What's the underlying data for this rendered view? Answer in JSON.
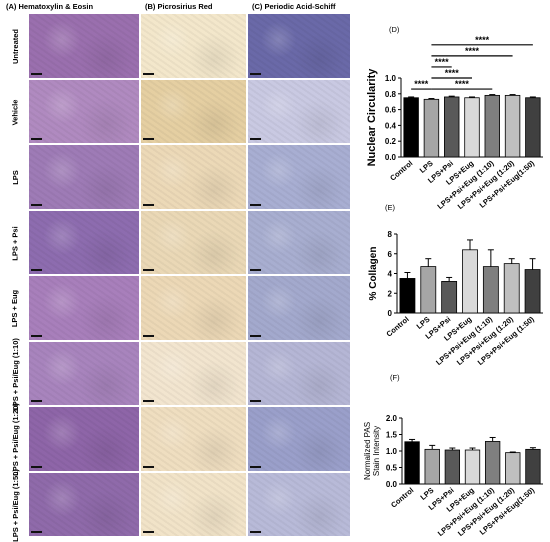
{
  "figure": {
    "column_headers": [
      "(A) Hematoxylin & Eosin",
      "(B) Picrosirius Red",
      "(C) Periodic Acid-Schiff"
    ],
    "row_labels": [
      "Untreated",
      "Vehicle",
      "LPS",
      "LPS + Psi",
      "LPS + Eug",
      "LPS + Psi/Eug (1:10)",
      "LPS + Psi/Eug (1:20)",
      "LPS + Psi/Eug (1:50)"
    ],
    "tile_colors": {
      "he": [
        "#9a6fae",
        "#b08ac0",
        "#9e7bb6",
        "#8d6caf",
        "#a87fbb",
        "#a884bd",
        "#8e65a8",
        "#8f6aaa"
      ],
      "psr": [
        "#f3e7cb",
        "#e5cfa2",
        "#ecd9b7",
        "#ead8b6",
        "#ecd8b6",
        "#f2e5cf",
        "#efdec0",
        "#f1e3c8"
      ],
      "pas": [
        "#6a69a8",
        "#c9c9e2",
        "#a8aed2",
        "#a8aed0",
        "#a3a9cd",
        "#b5b6d5",
        "#9a9fca",
        "#b8bad8"
      ]
    }
  },
  "chart_data": [
    {
      "type": "bar",
      "panel": "(D)",
      "ylabel": "Nuclear Circularity",
      "ylim": [
        0,
        1.0
      ],
      "yticks": [
        "0.0",
        "0.2",
        "0.4",
        "0.6",
        "0.8",
        "1.0"
      ],
      "categories": [
        "Control",
        "LPS",
        "LPS+Psi",
        "LPS+Eug",
        "LPS+Psi+Eug (1:10)",
        "LPS+Psi+Eug (1:20)",
        "LPS+Psi+Eug(1:50)"
      ],
      "values": [
        0.75,
        0.73,
        0.76,
        0.75,
        0.78,
        0.78,
        0.75
      ],
      "errors": [
        0.01,
        0.01,
        0.01,
        0.01,
        0.01,
        0.01,
        0.01
      ],
      "bar_colors": [
        "#000000",
        "#a6a6a6",
        "#595959",
        "#d9d9d9",
        "#7f7f7f",
        "#bfbfbf",
        "#404040"
      ],
      "significance": [
        {
          "from": 0,
          "to": 1,
          "label": "****",
          "y": 0.86
        },
        {
          "from": 1,
          "to": 4,
          "label": "****",
          "y": 0.86
        },
        {
          "from": 1,
          "to": 3,
          "label": "****",
          "y": 1.0
        },
        {
          "from": 1,
          "to": 2,
          "label": "****",
          "y": 1.14
        },
        {
          "from": 1,
          "to": 5,
          "label": "****",
          "y": 1.28
        },
        {
          "from": 1,
          "to": 6,
          "label": "****",
          "y": 1.42
        }
      ]
    },
    {
      "type": "bar",
      "panel": "(E)",
      "ylabel": "% Collagen",
      "ylim": [
        0,
        8
      ],
      "yticks": [
        "0",
        "2",
        "4",
        "6",
        "8"
      ],
      "categories": [
        "Control",
        "LPS",
        "LPS+Psi",
        "LPS+Eug",
        "LPS+Psi+Eug (1:10)",
        "LPS+Psi+Eug (1:20)",
        "LPS+Psi+Eug (1:50)"
      ],
      "values": [
        3.5,
        4.7,
        3.2,
        6.4,
        4.7,
        5.0,
        4.4
      ],
      "errors": [
        0.6,
        0.8,
        0.4,
        1.0,
        1.7,
        0.5,
        1.1
      ],
      "bar_colors": [
        "#000000",
        "#a6a6a6",
        "#595959",
        "#d9d9d9",
        "#7f7f7f",
        "#bfbfbf",
        "#404040"
      ]
    },
    {
      "type": "bar",
      "panel": "(F)",
      "ylabel": "Normalized PAS Stain Intensity",
      "ylim": [
        0,
        2.0
      ],
      "yticks": [
        "0.0",
        "0.5",
        "1.0",
        "1.5",
        "2.0"
      ],
      "categories": [
        "Control",
        "LPS",
        "LPS+Psi",
        "LPS+Eug",
        "LPS+Psi+Eug (1:10)",
        "LPS+Psi+Eug (1:20)",
        "LPS+Psi+Eug(1:50)"
      ],
      "values": [
        1.28,
        1.05,
        1.03,
        1.03,
        1.29,
        0.95,
        1.05
      ],
      "errors": [
        0.07,
        0.12,
        0.06,
        0.06,
        0.12,
        0.02,
        0.05
      ],
      "bar_colors": [
        "#000000",
        "#a6a6a6",
        "#595959",
        "#d9d9d9",
        "#7f7f7f",
        "#bfbfbf",
        "#404040"
      ]
    }
  ]
}
